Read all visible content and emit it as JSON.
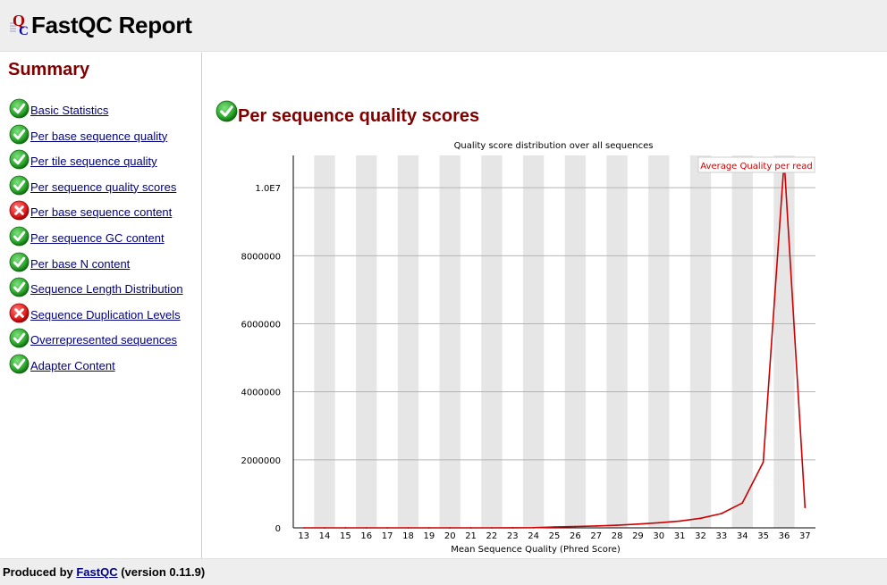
{
  "header": {
    "title": "FastQC Report",
    "logo_icon": "fastqc-logo-icon"
  },
  "sidebar": {
    "title": "Summary",
    "items": [
      {
        "label": "Basic Statistics",
        "status": "pass"
      },
      {
        "label": "Per base sequence quality",
        "status": "pass"
      },
      {
        "label": "Per tile sequence quality",
        "status": "pass"
      },
      {
        "label": "Per sequence quality scores",
        "status": "pass"
      },
      {
        "label": "Per base sequence content",
        "status": "fail"
      },
      {
        "label": "Per sequence GC content",
        "status": "pass"
      },
      {
        "label": "Per base N content",
        "status": "pass"
      },
      {
        "label": "Sequence Length Distribution",
        "status": "pass"
      },
      {
        "label": "Sequence Duplication Levels",
        "status": "fail"
      },
      {
        "label": "Overrepresented sequences",
        "status": "pass"
      },
      {
        "label": "Adapter Content",
        "status": "pass"
      }
    ]
  },
  "main": {
    "title": "Per sequence quality scores",
    "status": "pass"
  },
  "chart_data": {
    "type": "line",
    "title": "Quality score distribution over all sequences",
    "xlabel": "Mean Sequence Quality (Phred Score)",
    "ylabel": "",
    "x": [
      13,
      14,
      15,
      16,
      17,
      18,
      19,
      20,
      21,
      22,
      23,
      24,
      25,
      26,
      27,
      28,
      29,
      30,
      31,
      32,
      33,
      34,
      35,
      36,
      37
    ],
    "y_ticks": [
      0,
      2000000,
      4000000,
      6000000,
      8000000,
      10000000
    ],
    "y_tick_labels": [
      "0",
      "2000000",
      "4000000",
      "6000000",
      "8000000",
      "1.0E7"
    ],
    "ylim": [
      0,
      10950000
    ],
    "grid": true,
    "alternating_bands": true,
    "legend_position": "top-right",
    "series": [
      {
        "name": "Average Quality per read",
        "color": "#cc0000",
        "values": [
          0,
          0,
          0,
          0,
          0,
          0,
          0,
          0,
          0,
          0,
          2000,
          5000,
          25000,
          40000,
          55000,
          75000,
          110000,
          150000,
          200000,
          280000,
          420000,
          730000,
          1930000,
          10800000,
          600000
        ]
      }
    ]
  },
  "footer": {
    "prefix": "Produced by ",
    "link": "FastQC",
    "suffix": " (version 0.11.9)"
  },
  "colors": {
    "heading": "#800000",
    "link": "#000080",
    "line": "#cc0000",
    "band": "#e6e6e6",
    "gridline": "#b4b4b4",
    "pass": "#2ea82e",
    "fail": "#e02020"
  }
}
